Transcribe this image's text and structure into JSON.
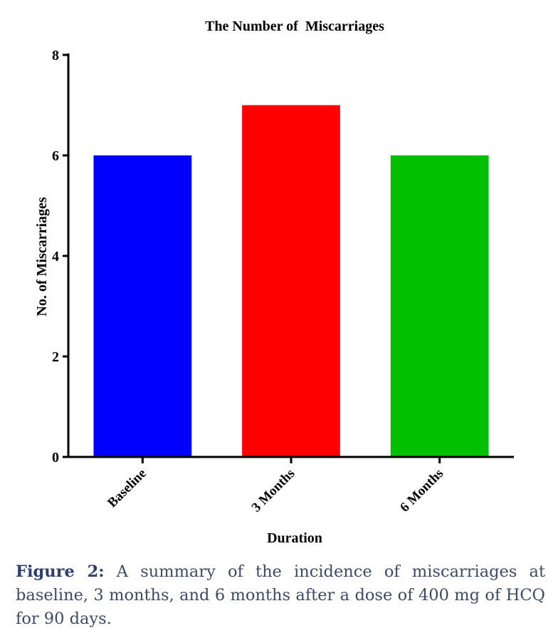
{
  "chart_data": {
    "type": "bar",
    "title": "The Number of  Miscarriages",
    "xlabel": "Duration",
    "ylabel": "No. of Miscarriages",
    "categories": [
      "Baseline",
      "3 Months",
      "6 Months"
    ],
    "values": [
      6,
      7,
      6
    ],
    "colors": [
      "#0000ff",
      "#ff0000",
      "#00c000"
    ],
    "ylim": [
      0,
      8
    ],
    "yticks": [
      0,
      2,
      4,
      6,
      8
    ],
    "grid": false,
    "legend": "none"
  },
  "caption": {
    "label": "Figure 2:",
    "text": " A summary of the incidence of miscarriages at baseline, 3 months, and 6 months after a dose of 400 mg of HCQ for 90 days."
  }
}
